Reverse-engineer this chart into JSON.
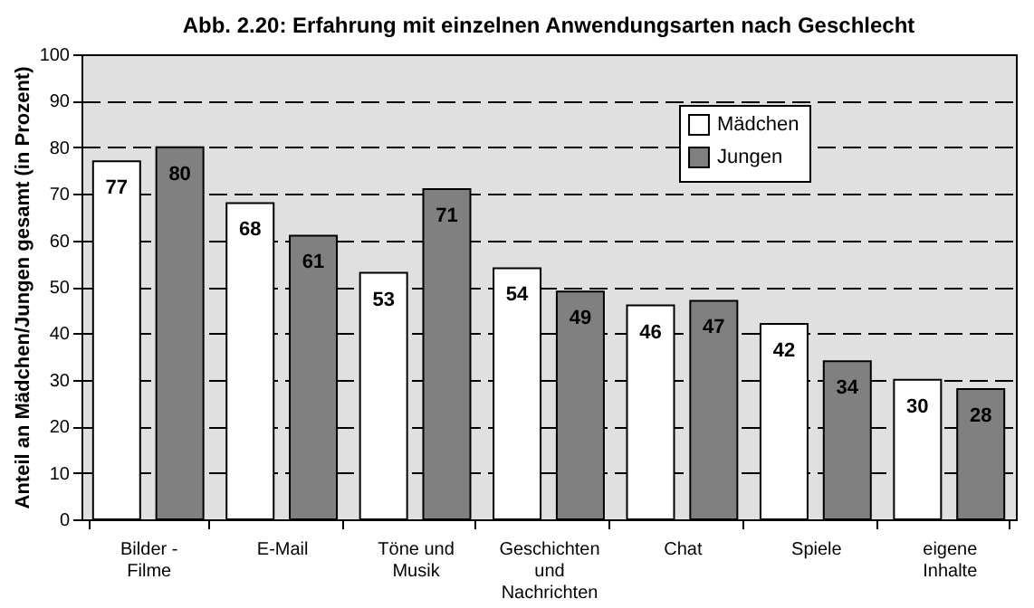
{
  "chart_data": {
    "type": "bar",
    "title": "Abb. 2.20: Erfahrung mit einzelnen Anwendungsarten nach Geschlecht",
    "ylabel": "Anteil an Mädchen/Jungen gesamt (in Prozent)",
    "categories": [
      "Bilder -\nFilme",
      "E-Mail",
      "Töne und\nMusik",
      "Geschichten\nund\nNachrichten",
      "Chat",
      "Spiele",
      "eigene\nInhalte"
    ],
    "series": [
      {
        "name": "Mädchen",
        "color": "#ffffff",
        "values": [
          77,
          68,
          53,
          54,
          46,
          42,
          30
        ]
      },
      {
        "name": "Jungen",
        "color": "#808080",
        "values": [
          80,
          61,
          71,
          49,
          47,
          34,
          28
        ]
      }
    ],
    "ylim": [
      0,
      100
    ],
    "yticks": [
      0,
      10,
      20,
      30,
      40,
      50,
      60,
      70,
      80,
      90,
      100
    ],
    "grid": "y",
    "legend": "top right",
    "data_labels": true
  }
}
